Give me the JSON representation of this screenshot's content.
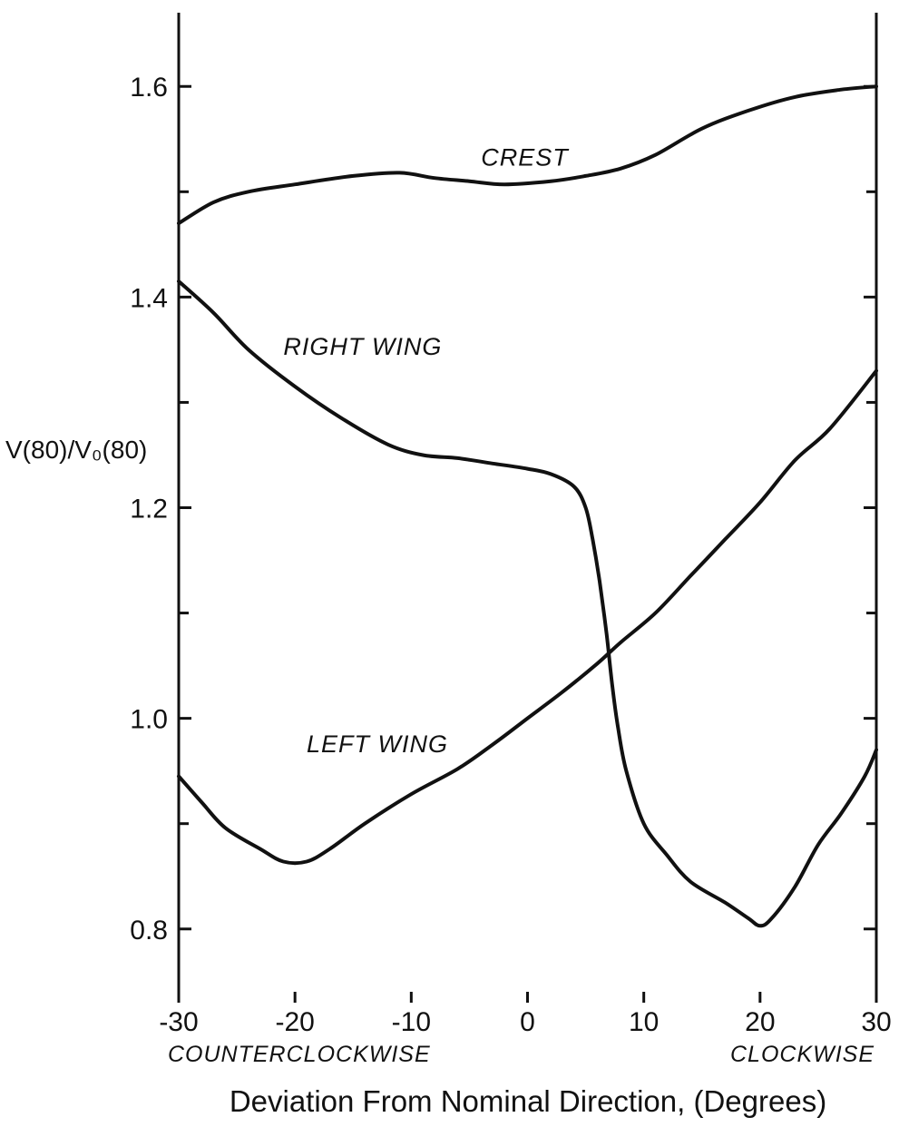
{
  "chart_data": {
    "type": "line",
    "xlabel": "Deviation From Nominal Direction, (Degrees)",
    "ylabel": "V(80)/V₀(80)",
    "xlim": [
      -30,
      30
    ],
    "ylim": [
      0.73,
      1.67
    ],
    "x_ticks": [
      -30,
      -20,
      -10,
      0,
      10,
      20,
      30
    ],
    "x_tick_labels": [
      "-30",
      "-20",
      "-10",
      "0",
      "10",
      "20",
      "30"
    ],
    "y_ticks": [
      0.8,
      1.0,
      1.2,
      1.4,
      1.6
    ],
    "y_tick_labels": [
      "0.8",
      "1.0",
      "1.2",
      "1.4",
      "1.6"
    ],
    "y_minor_ticks": [
      0.9,
      1.1,
      1.3,
      1.5
    ],
    "grid": false,
    "left_direction_label": "COUNTERCLOCKWISE",
    "right_direction_label": "CLOCKWISE",
    "series": [
      {
        "name": "CREST",
        "points": [
          [
            -30,
            1.47
          ],
          [
            -27,
            1.49
          ],
          [
            -24,
            1.5
          ],
          [
            -20,
            1.507
          ],
          [
            -15,
            1.515
          ],
          [
            -11,
            1.518
          ],
          [
            -8,
            1.513
          ],
          [
            -5,
            1.51
          ],
          [
            -2,
            1.507
          ],
          [
            2,
            1.51
          ],
          [
            5,
            1.515
          ],
          [
            8,
            1.522
          ],
          [
            11,
            1.535
          ],
          [
            15,
            1.56
          ],
          [
            19,
            1.577
          ],
          [
            23,
            1.59
          ],
          [
            27,
            1.597
          ],
          [
            30,
            1.6
          ]
        ]
      },
      {
        "name": "RIGHT WING",
        "points": [
          [
            -30,
            1.415
          ],
          [
            -27,
            1.385
          ],
          [
            -24,
            1.35
          ],
          [
            -20,
            1.315
          ],
          [
            -16,
            1.285
          ],
          [
            -12,
            1.26
          ],
          [
            -9,
            1.25
          ],
          [
            -6,
            1.247
          ],
          [
            -3,
            1.242
          ],
          [
            0,
            1.237
          ],
          [
            2,
            1.232
          ],
          [
            4,
            1.22
          ],
          [
            5,
            1.2
          ],
          [
            5.6,
            1.17
          ],
          [
            6.2,
            1.13
          ],
          [
            6.8,
            1.08
          ],
          [
            7.3,
            1.03
          ],
          [
            7.8,
            0.99
          ],
          [
            8.5,
            0.95
          ],
          [
            10,
            0.9
          ],
          [
            12,
            0.87
          ],
          [
            14,
            0.845
          ],
          [
            17,
            0.825
          ],
          [
            19,
            0.81
          ],
          [
            20,
            0.803
          ],
          [
            21,
            0.81
          ],
          [
            23,
            0.84
          ],
          [
            25,
            0.88
          ],
          [
            27,
            0.91
          ],
          [
            29,
            0.945
          ],
          [
            30,
            0.97
          ]
        ]
      },
      {
        "name": "LEFT WING",
        "points": [
          [
            -30,
            0.945
          ],
          [
            -28,
            0.92
          ],
          [
            -26,
            0.896
          ],
          [
            -23,
            0.876
          ],
          [
            -21,
            0.864
          ],
          [
            -19,
            0.864
          ],
          [
            -17,
            0.876
          ],
          [
            -14,
            0.9
          ],
          [
            -10,
            0.928
          ],
          [
            -6,
            0.952
          ],
          [
            -3,
            0.975
          ],
          [
            0,
            1.0
          ],
          [
            3,
            1.025
          ],
          [
            6,
            1.052
          ],
          [
            8,
            1.072
          ],
          [
            11,
            1.1
          ],
          [
            14,
            1.135
          ],
          [
            17,
            1.17
          ],
          [
            20,
            1.205
          ],
          [
            23,
            1.245
          ],
          [
            26,
            1.275
          ],
          [
            30,
            1.33
          ]
        ]
      }
    ]
  }
}
